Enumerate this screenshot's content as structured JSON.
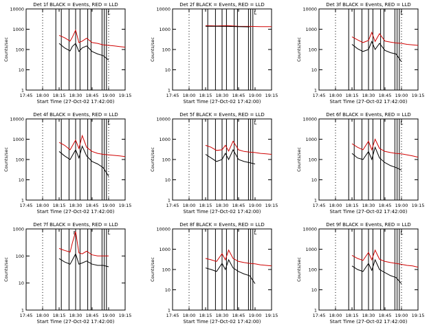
{
  "chart_data": [
    {
      "type": "line",
      "title": "Det 1f BLACK = Events, RED = LLD",
      "xlabel": "Start Time (27-Oct-02 17:42:00)",
      "ylabel": "Counts/sec",
      "yscale": "log",
      "ylim": [
        1,
        10000
      ],
      "x_ticks": [
        "17:45",
        "18:00",
        "18:15",
        "18:30",
        "18:45",
        "19:00",
        "19:15"
      ],
      "y_ticks": [
        "1",
        "10",
        "100",
        "1000",
        "10000"
      ],
      "dotted_lines": [
        "18:00",
        "19:00"
      ],
      "legend_marks": [
        "L"
      ],
      "series": [
        {
          "color": "#d00000",
          "x": [
            "18:15",
            "18:20",
            "18:25",
            "18:27",
            "18:30",
            "18:33",
            "18:36",
            "18:40",
            "18:45",
            "18:50",
            "18:55",
            "19:00",
            "19:05",
            "19:10",
            "19:15"
          ],
          "y": [
            500,
            380,
            260,
            400,
            900,
            220,
            260,
            360,
            220,
            200,
            170,
            160,
            150,
            140,
            130
          ]
        },
        {
          "color": "#000000",
          "x": [
            "18:15",
            "18:20",
            "18:25",
            "18:27",
            "18:30",
            "18:33",
            "18:36",
            "18:40",
            "18:45",
            "18:50",
            "18:55",
            "19:00"
          ],
          "y": [
            200,
            120,
            85,
            140,
            200,
            80,
            120,
            150,
            80,
            60,
            50,
            30
          ]
        }
      ]
    },
    {
      "type": "line",
      "title": "Det 2f BLACK = Events, RED = LLD",
      "xlabel": "Start Time (27-Oct-02 17:42:00)",
      "ylabel": "Counts/sec",
      "yscale": "log",
      "ylim": [
        1,
        10000
      ],
      "x_ticks": [
        "17:45",
        "18:00",
        "18:15",
        "18:30",
        "18:45",
        "19:00",
        "19:15"
      ],
      "y_ticks": [
        "1",
        "10",
        "100",
        "1000",
        "10000"
      ],
      "dotted_lines": [
        "18:00"
      ],
      "legend_marks": [
        "L"
      ],
      "series": [
        {
          "color": "#d00000",
          "x": [
            "18:15",
            "18:25",
            "18:35",
            "18:45",
            "18:55",
            "19:05",
            "19:15"
          ],
          "y": [
            1500,
            1450,
            1500,
            1400,
            1380,
            1350,
            1350
          ]
        },
        {
          "color": "#000000",
          "x": [
            "18:15",
            "18:25",
            "18:35",
            "18:45",
            "18:55"
          ],
          "y": [
            1400,
            1400,
            1380,
            1350,
            1300
          ]
        }
      ]
    },
    {
      "type": "line",
      "title": "Det 3f BLACK = Events, RED = LLD",
      "xlabel": "Start Time (27-Oct-02 17:42:00)",
      "ylabel": "Counts/sec",
      "yscale": "log",
      "ylim": [
        1,
        10000
      ],
      "x_ticks": [
        "17:45",
        "18:00",
        "18:15",
        "18:30",
        "18:45",
        "19:00",
        "19:15"
      ],
      "y_ticks": [
        "1",
        "10",
        "100",
        "1000",
        "10000"
      ],
      "dotted_lines": [
        "18:00",
        "19:00"
      ],
      "legend_marks": [
        "L"
      ],
      "series": [
        {
          "color": "#d00000",
          "x": [
            "18:15",
            "18:20",
            "18:25",
            "18:30",
            "18:33",
            "18:36",
            "18:40",
            "18:45",
            "18:50",
            "18:55",
            "19:00",
            "19:05",
            "19:10",
            "19:15"
          ],
          "y": [
            420,
            300,
            220,
            280,
            700,
            250,
            600,
            260,
            230,
            210,
            200,
            180,
            170,
            160
          ]
        },
        {
          "color": "#000000",
          "x": [
            "18:15",
            "18:20",
            "18:25",
            "18:30",
            "18:33",
            "18:36",
            "18:40",
            "18:45",
            "18:50",
            "18:55",
            "19:00"
          ],
          "y": [
            180,
            110,
            80,
            100,
            250,
            100,
            200,
            90,
            70,
            60,
            25
          ]
        }
      ]
    },
    {
      "type": "line",
      "title": "Det 4f BLACK = Events, RED = LLD",
      "xlabel": "Start Time (27-Oct-02 17:42:00)",
      "ylabel": "Counts/sec",
      "yscale": "log",
      "ylim": [
        1,
        10000
      ],
      "x_ticks": [
        "17:45",
        "18:00",
        "18:15",
        "18:30",
        "18:45",
        "19:00",
        "19:15"
      ],
      "y_ticks": [
        "1",
        "10",
        "100",
        "1000",
        "10000"
      ],
      "dotted_lines": [
        "18:00",
        "19:00"
      ],
      "legend_marks": [
        "L"
      ],
      "series": [
        {
          "color": "#d00000",
          "x": [
            "18:15",
            "18:20",
            "18:25",
            "18:30",
            "18:33",
            "18:36",
            "18:40",
            "18:45",
            "18:50",
            "18:55",
            "19:00",
            "19:05",
            "19:10",
            "19:15"
          ],
          "y": [
            700,
            500,
            300,
            900,
            350,
            1500,
            400,
            250,
            200,
            180,
            170,
            160,
            150,
            140
          ]
        },
        {
          "color": "#000000",
          "x": [
            "18:15",
            "18:20",
            "18:25",
            "18:30",
            "18:33",
            "18:36",
            "18:40",
            "18:45",
            "18:50",
            "18:55",
            "19:00"
          ],
          "y": [
            250,
            150,
            100,
            300,
            120,
            450,
            150,
            80,
            60,
            40,
            15
          ]
        }
      ]
    },
    {
      "type": "line",
      "title": "Det 5f BLACK = Events, RED = LLD",
      "xlabel": "Start Time (27-Oct-02 17:42:00)",
      "ylabel": "Counts/sec",
      "yscale": "log",
      "ylim": [
        1,
        10000
      ],
      "x_ticks": [
        "17:45",
        "18:00",
        "18:15",
        "18:30",
        "18:45",
        "19:00",
        "19:15"
      ],
      "y_ticks": [
        "1",
        "10",
        "100",
        "1000",
        "10000"
      ],
      "dotted_lines": [
        "18:00"
      ],
      "legend_marks": [
        "L"
      ],
      "series": [
        {
          "color": "#d00000",
          "x": [
            "18:15",
            "18:20",
            "18:25",
            "18:30",
            "18:33",
            "18:36",
            "18:40",
            "18:45",
            "18:50",
            "18:55",
            "19:00",
            "19:05",
            "19:10",
            "19:15"
          ],
          "y": [
            500,
            400,
            280,
            300,
            500,
            260,
            800,
            300,
            250,
            230,
            220,
            200,
            190,
            180
          ]
        },
        {
          "color": "#000000",
          "x": [
            "18:15",
            "18:20",
            "18:25",
            "18:30",
            "18:33",
            "18:36",
            "18:40",
            "18:45",
            "18:50",
            "18:55",
            "19:00"
          ],
          "y": [
            180,
            120,
            80,
            100,
            200,
            100,
            300,
            100,
            80,
            70,
            60
          ]
        }
      ]
    },
    {
      "type": "line",
      "title": "Det 6f BLACK = Events, RED = LLD",
      "xlabel": "Start Time (27-Oct-02 17:42:00)",
      "ylabel": "Counts/sec",
      "yscale": "log",
      "ylim": [
        1,
        10000
      ],
      "x_ticks": [
        "17:45",
        "18:00",
        "18:15",
        "18:30",
        "18:45",
        "19:00",
        "19:15"
      ],
      "y_ticks": [
        "1",
        "10",
        "100",
        "1000",
        "10000"
      ],
      "dotted_lines": [
        "18:00",
        "19:00"
      ],
      "legend_marks": [
        "L"
      ],
      "series": [
        {
          "color": "#d00000",
          "x": [
            "18:15",
            "18:20",
            "18:25",
            "18:30",
            "18:33",
            "18:36",
            "18:40",
            "18:45",
            "18:50",
            "18:55",
            "19:00",
            "19:05",
            "19:10",
            "19:15"
          ],
          "y": [
            600,
            400,
            300,
            800,
            300,
            1000,
            350,
            250,
            220,
            200,
            190,
            170,
            150,
            130
          ]
        },
        {
          "color": "#000000",
          "x": [
            "18:15",
            "18:20",
            "18:25",
            "18:30",
            "18:33",
            "18:36",
            "18:40",
            "18:45",
            "18:50",
            "18:55",
            "19:00"
          ],
          "y": [
            200,
            120,
            100,
            250,
            100,
            400,
            120,
            70,
            50,
            40,
            30
          ]
        }
      ]
    },
    {
      "type": "line",
      "title": "Det 7f BLACK = Events, RED = LLD",
      "xlabel": "Start Time (27-Oct-02 17:42:00)",
      "ylabel": "Counts/sec",
      "yscale": "log",
      "ylim": [
        1,
        1000
      ],
      "x_ticks": [
        "17:45",
        "18:00",
        "18:15",
        "18:30",
        "18:45",
        "19:00",
        "19:15"
      ],
      "y_ticks": [
        "1",
        "10",
        "100",
        "1000"
      ],
      "dotted_lines": [
        "18:00"
      ],
      "legend_marks": [
        "F",
        "L"
      ],
      "series": [
        {
          "color": "#d00000",
          "x": [
            "18:15",
            "18:20",
            "18:25",
            "18:27",
            "18:30",
            "18:33",
            "18:36",
            "18:40",
            "18:45",
            "18:50",
            "18:55",
            "19:00"
          ],
          "y": [
            190,
            160,
            140,
            300,
            800,
            130,
            120,
            150,
            110,
            100,
            100,
            100
          ]
        },
        {
          "color": "#000000",
          "x": [
            "18:15",
            "18:20",
            "18:25",
            "18:27",
            "18:30",
            "18:33",
            "18:36",
            "18:40",
            "18:45",
            "18:50",
            "18:55",
            "19:00"
          ],
          "y": [
            80,
            60,
            50,
            70,
            120,
            50,
            55,
            65,
            50,
            45,
            45,
            40
          ]
        }
      ]
    },
    {
      "type": "line",
      "title": "Det 8f BLACK = Events, RED = LLD",
      "xlabel": "Start Time (27-Oct-02 17:42:00)",
      "ylabel": "Counts/sec",
      "yscale": "log",
      "ylim": [
        1,
        10000
      ],
      "x_ticks": [
        "17:45",
        "18:00",
        "18:15",
        "18:30",
        "18:45",
        "19:00",
        "19:15"
      ],
      "y_ticks": [
        "1",
        "10",
        "100",
        "1000",
        "10000"
      ],
      "dotted_lines": [
        "18:00"
      ],
      "legend_marks": [
        "L"
      ],
      "series": [
        {
          "color": "#d00000",
          "x": [
            "18:15",
            "18:20",
            "18:25",
            "18:30",
            "18:33",
            "18:36",
            "18:40",
            "18:45",
            "18:50",
            "18:55",
            "19:00",
            "19:05",
            "19:10",
            "19:15"
          ],
          "y": [
            350,
            300,
            250,
            600,
            300,
            900,
            350,
            250,
            220,
            200,
            190,
            170,
            160,
            150
          ]
        },
        {
          "color": "#000000",
          "x": [
            "18:15",
            "18:20",
            "18:25",
            "18:30",
            "18:33",
            "18:36",
            "18:40",
            "18:45",
            "18:50",
            "18:55",
            "19:00"
          ],
          "y": [
            120,
            100,
            80,
            200,
            100,
            300,
            120,
            80,
            60,
            50,
            20
          ]
        }
      ]
    },
    {
      "type": "line",
      "title": "Det 9f BLACK = Events, RED = LLD",
      "xlabel": "Start Time (27-Oct-02 17:42:00)",
      "ylabel": "Counts/sec",
      "yscale": "log",
      "ylim": [
        1,
        10000
      ],
      "x_ticks": [
        "17:45",
        "18:00",
        "18:15",
        "18:30",
        "18:45",
        "19:00",
        "19:15"
      ],
      "y_ticks": [
        "1",
        "10",
        "100",
        "1000",
        "10000"
      ],
      "dotted_lines": [
        "18:00",
        "19:00"
      ],
      "legend_marks": [
        "L"
      ],
      "series": [
        {
          "color": "#d00000",
          "x": [
            "18:15",
            "18:20",
            "18:25",
            "18:30",
            "18:33",
            "18:36",
            "18:40",
            "18:45",
            "18:50",
            "18:55",
            "19:00",
            "19:05",
            "19:10",
            "19:15"
          ],
          "y": [
            500,
            350,
            280,
            700,
            300,
            900,
            320,
            250,
            220,
            200,
            180,
            160,
            150,
            130
          ]
        },
        {
          "color": "#000000",
          "x": [
            "18:15",
            "18:20",
            "18:25",
            "18:30",
            "18:33",
            "18:36",
            "18:40",
            "18:45",
            "18:50",
            "18:55",
            "19:00"
          ],
          "y": [
            150,
            100,
            80,
            200,
            90,
            300,
            100,
            70,
            50,
            40,
            20
          ]
        }
      ]
    }
  ]
}
